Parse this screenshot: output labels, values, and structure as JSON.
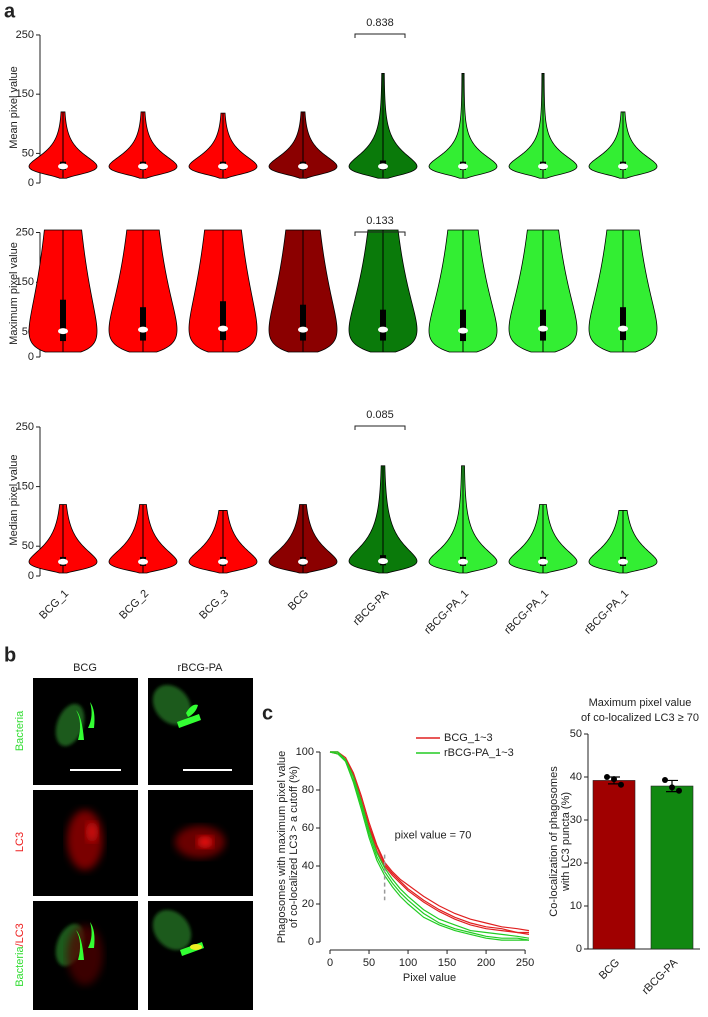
{
  "panel_labels": [
    "a",
    "b",
    "c"
  ],
  "microscopy": {
    "columns": [
      "BCG",
      "rBCG-PA"
    ],
    "rows": [
      [
        "Bacteria"
      ],
      [
        "LC3"
      ],
      [
        "Bacteria",
        "/LC3"
      ]
    ]
  },
  "chart_data": [
    {
      "type": "violin",
      "ylabel": "Mean pixel value",
      "ylim": [
        0,
        255
      ],
      "yticks": [
        0,
        50,
        150,
        250
      ],
      "pvalue": "0.838",
      "violins": [
        {
          "color": "#ff0000",
          "min": 8,
          "q1": 22,
          "median": 28,
          "q3": 36,
          "max": 120
        },
        {
          "color": "#ff0000",
          "min": 8,
          "q1": 22,
          "median": 28,
          "q3": 36,
          "max": 120
        },
        {
          "color": "#ff0000",
          "min": 8,
          "q1": 22,
          "median": 28,
          "q3": 36,
          "max": 118
        },
        {
          "color": "#8b0000",
          "min": 8,
          "q1": 22,
          "median": 28,
          "q3": 36,
          "max": 120
        },
        {
          "color": "#0a7a0a",
          "min": 8,
          "q1": 22,
          "median": 28,
          "q3": 38,
          "max": 185
        },
        {
          "color": "#33ee33",
          "min": 8,
          "q1": 22,
          "median": 28,
          "q3": 36,
          "max": 185
        },
        {
          "color": "#33ee33",
          "min": 8,
          "q1": 22,
          "median": 28,
          "q3": 36,
          "max": 185
        },
        {
          "color": "#33ee33",
          "min": 8,
          "q1": 22,
          "median": 28,
          "q3": 36,
          "max": 120
        }
      ]
    },
    {
      "type": "violin",
      "ylabel": "Maximum pixel value",
      "ylim": [
        0,
        255
      ],
      "yticks": [
        0,
        50,
        150,
        250
      ],
      "pvalue": "0.133",
      "violins": [
        {
          "color": "#ff0000",
          "min": 10,
          "q1": 32,
          "median": 52,
          "q3": 115,
          "max": 255
        },
        {
          "color": "#ff0000",
          "min": 10,
          "q1": 33,
          "median": 55,
          "q3": 100,
          "max": 255
        },
        {
          "color": "#ff0000",
          "min": 10,
          "q1": 34,
          "median": 57,
          "q3": 112,
          "max": 255
        },
        {
          "color": "#8b0000",
          "min": 10,
          "q1": 33,
          "median": 55,
          "q3": 105,
          "max": 255
        },
        {
          "color": "#0a7a0a",
          "min": 10,
          "q1": 33,
          "median": 55,
          "q3": 95,
          "max": 255
        },
        {
          "color": "#33ee33",
          "min": 10,
          "q1": 32,
          "median": 53,
          "q3": 95,
          "max": 255
        },
        {
          "color": "#33ee33",
          "min": 10,
          "q1": 33,
          "median": 57,
          "q3": 95,
          "max": 255
        },
        {
          "color": "#33ee33",
          "min": 10,
          "q1": 34,
          "median": 57,
          "q3": 100,
          "max": 255
        }
      ]
    },
    {
      "type": "violin",
      "ylabel": "Median pixel value",
      "ylim": [
        0,
        255
      ],
      "yticks": [
        0,
        50,
        150,
        250
      ],
      "pvalue": "0.085",
      "categories": [
        "BCG_1",
        "BCG_2",
        "BCG_3",
        "BCG",
        "rBCG-PA",
        "rBCG-PA_1",
        "rBCG-PA_1",
        "rBCG-PA_1"
      ],
      "violins": [
        {
          "color": "#ff0000",
          "min": 5,
          "q1": 17,
          "median": 24,
          "q3": 32,
          "max": 120
        },
        {
          "color": "#ff0000",
          "min": 5,
          "q1": 17,
          "median": 24,
          "q3": 32,
          "max": 120
        },
        {
          "color": "#ff0000",
          "min": 5,
          "q1": 17,
          "median": 24,
          "q3": 32,
          "max": 110
        },
        {
          "color": "#8b0000",
          "min": 5,
          "q1": 17,
          "median": 24,
          "q3": 32,
          "max": 120
        },
        {
          "color": "#0a7a0a",
          "min": 5,
          "q1": 18,
          "median": 25,
          "q3": 35,
          "max": 185
        },
        {
          "color": "#33ee33",
          "min": 5,
          "q1": 17,
          "median": 24,
          "q3": 32,
          "max": 185
        },
        {
          "color": "#33ee33",
          "min": 5,
          "q1": 17,
          "median": 24,
          "q3": 32,
          "max": 120
        },
        {
          "color": "#33ee33",
          "min": 5,
          "q1": 17,
          "median": 24,
          "q3": 32,
          "max": 110
        }
      ]
    },
    {
      "type": "line",
      "ylabel": [
        "Phagosomes with maximum pixel value",
        "of co-localized LC3 > a cutoff (%)"
      ],
      "xlabel": "Pixel value",
      "xlim": [
        0,
        255
      ],
      "ylim": [
        0,
        100
      ],
      "xticks": [
        0,
        50,
        100,
        150,
        200,
        250
      ],
      "yticks": [
        0,
        20,
        40,
        60,
        80,
        100
      ],
      "cutoff": {
        "value": 70,
        "label": "pixel value = 70"
      },
      "x": [
        0,
        10,
        20,
        30,
        40,
        50,
        60,
        70,
        80,
        90,
        100,
        120,
        140,
        160,
        180,
        200,
        220,
        240,
        255
      ],
      "series": [
        {
          "name": "BCG_1~3",
          "color": "#e02020",
          "replicates": [
            [
              100,
              100,
              97,
              89,
              77,
              63,
              51,
              42,
              37,
              33,
              30,
              24,
              19,
              15,
              12,
              10,
              8,
              7,
              6
            ],
            [
              100,
              100,
              96,
              88,
              75,
              61,
              50,
              41,
              36,
              32,
              28,
              22,
              17,
              13,
              10,
              8,
              7,
              5,
              5
            ],
            [
              100,
              99,
              96,
              87,
              74,
              60,
              48,
              40,
              35,
              31,
              27,
              21,
              16,
              12,
              9,
              7,
              6,
              5,
              4
            ]
          ]
        },
        {
          "name": "rBCG-PA_1~3",
          "color": "#22cc22",
          "replicates": [
            [
              100,
              100,
              96,
              87,
              74,
              59,
              47,
              39,
              33,
              28,
              24,
              17,
              12,
              9,
              6,
              5,
              4,
              3,
              2
            ],
            [
              100,
              100,
              95,
              85,
              72,
              57,
              45,
              37,
              31,
              26,
              22,
              15,
              10,
              7,
              5,
              3,
              2,
              2,
              1
            ],
            [
              100,
              99,
              95,
              84,
              70,
              55,
              43,
              35,
              29,
              24,
              20,
              13,
              9,
              6,
              4,
              2,
              1,
              1,
              1
            ]
          ]
        }
      ]
    },
    {
      "type": "bar",
      "title": [
        "Maximum pixel value",
        "of co-localized LC3 ≥ 70"
      ],
      "ylabel": [
        "Co-localization of phagosomes",
        "with LC3 puncta (%)"
      ],
      "categories": [
        "BCG",
        "rBCG-PA"
      ],
      "values": [
        39.2,
        37.9
      ],
      "errors": [
        0.8,
        1.3
      ],
      "colors": [
        "#a00000",
        "#118811"
      ],
      "points": [
        [
          40,
          39.5,
          38.2
        ],
        [
          39.3,
          37.6,
          36.8
        ]
      ],
      "ylim": [
        0,
        50
      ],
      "yticks": [
        0,
        10,
        20,
        30,
        40,
        50
      ]
    }
  ]
}
